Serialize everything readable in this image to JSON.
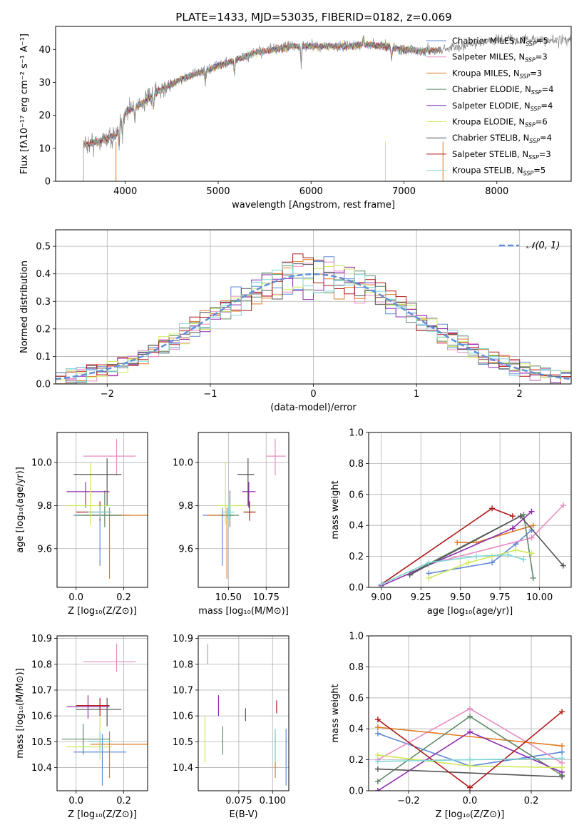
{
  "figure_title": "PLATE=1433, MJD=53035, FIBERID=0182, z=0.069",
  "colors": {
    "Chabrier MILES": "#5f89d8",
    "Salpeter MILES": "#e88cc0",
    "Kroupa MILES": "#e07b24",
    "Chabrier ELODIE": "#5d8a66",
    "Salpeter ELODIE": "#8e2bb0",
    "Kroupa ELODIE": "#cfe85a",
    "Chabrier STELIB": "#555555",
    "Salpeter STELIB": "#b01818",
    "Kroupa STELIB": "#7fd6d6",
    "normal": "#5f8fd8"
  },
  "chart_data": [
    {
      "id": "spectrum",
      "type": "line",
      "title": "PLATE=1433, MJD=53035, FIBERID=0182, z=0.069",
      "xlabel": "wavelength [Angstrom, rest frame]",
      "ylabel": "Flux [fλ10⁻¹⁷ erg cm⁻² s⁻¹ A⁻¹]",
      "xlim": [
        3250,
        8800
      ],
      "ylim": [
        0,
        47
      ],
      "xticks": [
        4000,
        5000,
        6000,
        7000,
        8000
      ],
      "yticks": [
        0,
        10,
        20,
        30,
        40
      ],
      "legend_position": "right",
      "spectrum_envelope": {
        "x": [
          3550,
          3700,
          3900,
          4000,
          4200,
          4400,
          4600,
          4800,
          5000,
          5200,
          5400,
          5600,
          5800,
          6000,
          6200,
          6400,
          6600,
          6800,
          7000,
          7200,
          7400,
          7600,
          7800,
          8000,
          8200,
          8400,
          8600,
          8800
        ],
        "y": [
          11,
          12,
          14,
          21,
          24,
          28,
          31,
          33,
          35,
          37,
          39,
          40,
          41,
          41,
          41,
          41,
          41.5,
          41,
          40,
          39.5,
          40,
          41,
          42,
          43,
          43,
          43,
          42.5,
          43
        ]
      },
      "series": [
        {
          "name": "Chabrier MILES, N_SSP=5",
          "label_main": "Chabrier MILES, N",
          "label_sub": "SSP",
          "label_end": "=5"
        },
        {
          "name": "Salpeter MILES, N_SSP=3",
          "label_main": "Salpeter MILES, N",
          "label_sub": "SSP",
          "label_end": "=3"
        },
        {
          "name": "Kroupa MILES, N_SSP=3",
          "label_main": "Kroupa MILES, N",
          "label_sub": "SSP",
          "label_end": "=3"
        },
        {
          "name": "Chabrier ELODIE, N_SSP=4",
          "label_main": "Chabrier ELODIE, N",
          "label_sub": "SSP",
          "label_end": "=4"
        },
        {
          "name": "Salpeter ELODIE, N_SSP=4",
          "label_main": "Salpeter ELODIE, N",
          "label_sub": "SSP",
          "label_end": "=4"
        },
        {
          "name": "Kroupa ELODIE, N_SSP=6",
          "label_main": "Kroupa ELODIE, N",
          "label_sub": "SSP",
          "label_end": "=6"
        },
        {
          "name": "Chabrier STELIB, N_SSP=4",
          "label_main": "Chabrier STELIB, N",
          "label_sub": "SSP",
          "label_end": "=4"
        },
        {
          "name": "Salpeter STELIB, N_SSP=3",
          "label_main": "Salpeter STELIB, N",
          "label_sub": "SSP",
          "label_end": "=3"
        },
        {
          "name": "Kroupa STELIB, N_SSP=5",
          "label_main": "Kroupa STELIB, N",
          "label_sub": "SSP",
          "label_end": "=5"
        }
      ]
    },
    {
      "id": "residuals",
      "type": "histogram",
      "xlabel": "(data-model)/error",
      "ylabel": "Normed distribution",
      "xlim": [
        -2.5,
        2.5
      ],
      "ylim": [
        0,
        0.56
      ],
      "xticks": [
        -2,
        -1,
        0,
        1,
        2
      ],
      "yticks": [
        0.0,
        0.1,
        0.2,
        0.3,
        0.4,
        0.5
      ],
      "grid": true,
      "legend": "𝒩(0, 1)",
      "legend_position": "top-right",
      "bin_width": 0.1,
      "normal_curve": {
        "mean": 0,
        "sigma": 1
      }
    },
    {
      "id": "age_vs_Z",
      "type": "errorbar",
      "xlabel": "Z [log₁₀(Z/Z⊙)]",
      "ylabel": "age  [log₁₀(age/yr)]",
      "xlim": [
        -0.08,
        0.3
      ],
      "ylim": [
        9.42,
        10.14
      ],
      "xticks": [
        0.0,
        0.2
      ],
      "yticks": [
        9.6,
        9.8,
        10.0
      ],
      "grid": true,
      "points": [
        {
          "x": 0.1,
          "y": 9.755,
          "xlo": -0.01,
          "xhi": 0.23,
          "ylo": 9.52,
          "yhi": 9.79,
          "c": "Chabrier MILES"
        },
        {
          "x": 0.17,
          "y": 10.03,
          "xlo": 0.03,
          "xhi": 0.25,
          "ylo": 9.94,
          "yhi": 10.11,
          "c": "Salpeter MILES"
        },
        {
          "x": 0.14,
          "y": 9.755,
          "xlo": 0.03,
          "xhi": 0.3,
          "ylo": 9.46,
          "yhi": 9.79,
          "c": "Kroupa MILES"
        },
        {
          "x": 0.12,
          "y": 9.755,
          "xlo": 0.0,
          "xhi": 0.19,
          "ylo": 9.7,
          "yhi": 9.87,
          "c": "Chabrier ELODIE"
        },
        {
          "x": 0.04,
          "y": 9.865,
          "xlo": -0.04,
          "xhi": 0.14,
          "ylo": 9.79,
          "yhi": 9.91,
          "c": "Salpeter ELODIE"
        },
        {
          "x": 0.06,
          "y": 9.8,
          "xlo": -0.04,
          "xhi": 0.15,
          "ylo": 9.71,
          "yhi": 10.0,
          "c": "Kroupa ELODIE"
        },
        {
          "x": 0.13,
          "y": 9.945,
          "xlo": -0.01,
          "xhi": 0.19,
          "ylo": 9.8,
          "yhi": 10.02,
          "c": "Chabrier STELIB"
        },
        {
          "x": 0.1,
          "y": 9.77,
          "xlo": 0.0,
          "xhi": 0.14,
          "ylo": 9.73,
          "yhi": 9.82,
          "c": "Salpeter STELIB"
        },
        {
          "x": 0.1,
          "y": 9.77,
          "xlo": 0.05,
          "xhi": 0.15,
          "ylo": 9.74,
          "yhi": 9.8,
          "c": "Kroupa STELIB"
        }
      ]
    },
    {
      "id": "age_vs_mass",
      "type": "errorbar",
      "xlabel": "mass [log₁₀(M/M⊙)]",
      "ylabel": "",
      "xlim": [
        10.3,
        10.9
      ],
      "ylim": [
        9.42,
        10.14
      ],
      "xticks": [
        10.5,
        10.75
      ],
      "yticks": [
        9.6,
        9.8,
        10.0
      ],
      "grid": true,
      "points": [
        {
          "x": 10.46,
          "y": 9.755,
          "xlo": 10.33,
          "xhi": 10.53,
          "ylo": 9.52,
          "yhi": 9.79,
          "c": "Chabrier MILES"
        },
        {
          "x": 10.81,
          "y": 10.03,
          "xlo": 10.75,
          "xhi": 10.88,
          "ylo": 9.94,
          "yhi": 10.11,
          "c": "Salpeter MILES"
        },
        {
          "x": 10.49,
          "y": 9.755,
          "xlo": 10.36,
          "xhi": 10.54,
          "ylo": 9.46,
          "yhi": 9.79,
          "c": "Kroupa MILES"
        },
        {
          "x": 10.51,
          "y": 9.755,
          "xlo": 10.45,
          "xhi": 10.57,
          "ylo": 9.7,
          "yhi": 9.87,
          "c": "Chabrier ELODIE"
        },
        {
          "x": 10.635,
          "y": 9.865,
          "xlo": 10.59,
          "xhi": 10.68,
          "ylo": 9.79,
          "yhi": 9.91,
          "c": "Salpeter ELODIE"
        },
        {
          "x": 10.48,
          "y": 9.8,
          "xlo": 10.43,
          "xhi": 10.6,
          "ylo": 9.71,
          "yhi": 10.0,
          "c": "Kroupa ELODIE"
        },
        {
          "x": 10.63,
          "y": 9.945,
          "xlo": 10.56,
          "xhi": 10.67,
          "ylo": 9.8,
          "yhi": 10.02,
          "c": "Chabrier STELIB"
        },
        {
          "x": 10.64,
          "y": 9.77,
          "xlo": 10.6,
          "xhi": 10.68,
          "ylo": 9.73,
          "yhi": 9.82,
          "c": "Salpeter STELIB"
        },
        {
          "x": 10.5,
          "y": 9.77,
          "xlo": 10.46,
          "xhi": 10.54,
          "ylo": 9.74,
          "yhi": 9.8,
          "c": "Kroupa STELIB"
        }
      ]
    },
    {
      "id": "weight_vs_age",
      "type": "line",
      "xlabel": "age  [log₁₀(age/yr)]",
      "ylabel": "mass weight",
      "xlim": [
        8.92,
        10.2
      ],
      "ylim": [
        0,
        1.0
      ],
      "xticks": [
        9.0,
        9.25,
        9.5,
        9.75,
        10.0
      ],
      "yticks": [
        0.0,
        0.2,
        0.4,
        0.6,
        0.8,
        1.0
      ],
      "grid": true,
      "series": [
        {
          "c": "Chabrier MILES",
          "x": [
            9.3,
            9.7,
            9.85,
            9.95
          ],
          "y": [
            0.09,
            0.16,
            0.28,
            0.37
          ]
        },
        {
          "c": "Salpeter MILES",
          "x": [
            9.3,
            9.95,
            10.15
          ],
          "y": [
            0.15,
            0.32,
            0.53
          ]
        },
        {
          "c": "Kroupa MILES",
          "x": [
            9.48,
            9.6,
            9.96
          ],
          "y": [
            0.29,
            0.29,
            0.4
          ]
        },
        {
          "c": "Chabrier ELODIE",
          "x": [
            9.2,
            9.9,
            9.96
          ],
          "y": [
            0.1,
            0.47,
            0.06
          ]
        },
        {
          "c": "Salpeter ELODIE",
          "x": [
            9.0,
            9.83,
            9.95
          ],
          "y": [
            0.01,
            0.38,
            0.49
          ]
        },
        {
          "c": "Kroupa ELODIE",
          "x": [
            9.3,
            9.55,
            9.7,
            9.85,
            9.95
          ],
          "y": [
            0.06,
            0.16,
            0.2,
            0.24,
            0.22
          ]
        },
        {
          "c": "Chabrier STELIB",
          "x": [
            9.18,
            9.88,
            10.15
          ],
          "y": [
            0.08,
            0.46,
            0.14
          ]
        },
        {
          "c": "Salpeter STELIB",
          "x": [
            9.0,
            9.7,
            9.83
          ],
          "y": [
            0.02,
            0.51,
            0.46
          ]
        },
        {
          "c": "Kroupa STELIB",
          "x": [
            9.0,
            9.3,
            9.6,
            9.8,
            9.9
          ],
          "y": [
            0.02,
            0.16,
            0.2,
            0.21,
            0.18
          ]
        }
      ]
    },
    {
      "id": "mass_vs_Z",
      "type": "errorbar",
      "xlabel": "Z [log₁₀(Z/Z⊙)]",
      "ylabel": "mass [log₁₀(M/M⊙)]",
      "xlim": [
        -0.08,
        0.3
      ],
      "ylim": [
        10.31,
        10.91
      ],
      "xticks": [
        0.0,
        0.2
      ],
      "yticks": [
        10.4,
        10.5,
        10.6,
        10.7,
        10.8,
        10.9
      ],
      "grid": true,
      "points": [
        {
          "x": 0.11,
          "y": 10.46,
          "xlo": -0.01,
          "xhi": 0.21,
          "ylo": 10.33,
          "yhi": 10.53,
          "c": "Chabrier MILES"
        },
        {
          "x": 0.17,
          "y": 10.81,
          "xlo": 0.03,
          "xhi": 0.25,
          "ylo": 10.77,
          "yhi": 10.88,
          "c": "Salpeter MILES"
        },
        {
          "x": 0.14,
          "y": 10.49,
          "xlo": 0.06,
          "xhi": 0.3,
          "ylo": 10.36,
          "yhi": 10.54,
          "c": "Kroupa MILES"
        },
        {
          "x": 0.03,
          "y": 10.51,
          "xlo": -0.06,
          "xhi": 0.14,
          "ylo": 10.45,
          "yhi": 10.57,
          "c": "Chabrier ELODIE"
        },
        {
          "x": 0.05,
          "y": 10.635,
          "xlo": -0.04,
          "xhi": 0.14,
          "ylo": 10.59,
          "yhi": 10.68,
          "c": "Salpeter ELODIE"
        },
        {
          "x": 0.1,
          "y": 10.48,
          "xlo": -0.04,
          "xhi": 0.15,
          "ylo": 10.43,
          "yhi": 10.6,
          "c": "Kroupa ELODIE"
        },
        {
          "x": 0.13,
          "y": 10.625,
          "xlo": 0.0,
          "xhi": 0.19,
          "ylo": 10.56,
          "yhi": 10.67,
          "c": "Chabrier STELIB"
        },
        {
          "x": 0.1,
          "y": 10.64,
          "xlo": 0.0,
          "xhi": 0.14,
          "ylo": 10.6,
          "yhi": 10.67,
          "c": "Salpeter STELIB"
        },
        {
          "x": 0.1,
          "y": 10.5,
          "xlo": 0.05,
          "xhi": 0.15,
          "ylo": 10.46,
          "yhi": 10.54,
          "c": "Kroupa STELIB"
        }
      ]
    },
    {
      "id": "mass_vs_ebv",
      "type": "errorbar",
      "xlabel": "E(B-V)",
      "ylabel": "",
      "xlim": [
        0.045,
        0.112
      ],
      "ylim": [
        10.31,
        10.91
      ],
      "xticks": [
        0.075,
        0.1
      ],
      "yticks": [
        10.4,
        10.5,
        10.6,
        10.7,
        10.8,
        10.9
      ],
      "grid": true,
      "points": [
        {
          "x": 0.11,
          "y": 10.46,
          "ylo": 10.33,
          "yhi": 10.55,
          "c": "Chabrier MILES"
        },
        {
          "x": 0.052,
          "y": 10.84,
          "ylo": 10.8,
          "yhi": 10.88,
          "c": "Salpeter MILES"
        },
        {
          "x": 0.102,
          "y": 10.45,
          "ylo": 10.36,
          "yhi": 10.54,
          "c": "Kroupa MILES"
        },
        {
          "x": 0.063,
          "y": 10.51,
          "ylo": 10.45,
          "yhi": 10.56,
          "c": "Chabrier ELODIE"
        },
        {
          "x": 0.06,
          "y": 10.64,
          "ylo": 10.6,
          "yhi": 10.68,
          "c": "Salpeter ELODIE"
        },
        {
          "x": 0.05,
          "y": 10.51,
          "ylo": 10.42,
          "yhi": 10.6,
          "c": "Kroupa ELODIE"
        },
        {
          "x": 0.08,
          "y": 10.61,
          "ylo": 10.58,
          "yhi": 10.63,
          "c": "Chabrier STELIB"
        },
        {
          "x": 0.103,
          "y": 10.64,
          "ylo": 10.61,
          "yhi": 10.66,
          "c": "Salpeter STELIB"
        },
        {
          "x": 0.102,
          "y": 10.48,
          "ylo": 10.42,
          "yhi": 10.55,
          "c": "Kroupa STELIB"
        }
      ]
    },
    {
      "id": "weight_vs_Z",
      "type": "line",
      "xlabel": "Z [log₁₀(Z/Z⊙)]",
      "ylabel": "mass weight",
      "xlim": [
        -0.33,
        0.33
      ],
      "ylim": [
        0,
        1.0
      ],
      "xticks": [
        -0.2,
        0.0,
        0.2
      ],
      "yticks": [
        0.0,
        0.2,
        0.4,
        0.6,
        0.8,
        1.0
      ],
      "grid": true,
      "series": [
        {
          "c": "Chabrier MILES",
          "x": [
            -0.3,
            0.0,
            0.3
          ],
          "y": [
            0.37,
            0.16,
            0.25
          ]
        },
        {
          "c": "Salpeter MILES",
          "x": [
            -0.3,
            0.0,
            0.3
          ],
          "y": [
            0.2,
            0.53,
            0.18
          ]
        },
        {
          "c": "Kroupa MILES",
          "x": [
            -0.3,
            0.3
          ],
          "y": [
            0.41,
            0.29
          ]
        },
        {
          "c": "Chabrier ELODIE",
          "x": [
            -0.3,
            0.0,
            0.3
          ],
          "y": [
            0.06,
            0.48,
            0.1
          ]
        },
        {
          "c": "Salpeter ELODIE",
          "x": [
            -0.3,
            0.0,
            0.3
          ],
          "y": [
            0.0,
            0.38,
            0.12
          ]
        },
        {
          "c": "Kroupa ELODIE",
          "x": [
            -0.3,
            0.0,
            0.3
          ],
          "y": [
            0.23,
            0.16,
            0.15
          ]
        },
        {
          "c": "Chabrier STELIB",
          "x": [
            -0.3,
            0.3
          ],
          "y": [
            0.14,
            0.09
          ]
        },
        {
          "c": "Salpeter STELIB",
          "x": [
            -0.3,
            0.0,
            0.3
          ],
          "y": [
            0.46,
            0.02,
            0.51
          ]
        },
        {
          "c": "Kroupa STELIB",
          "x": [
            -0.3,
            0.0,
            0.3
          ],
          "y": [
            0.19,
            0.2,
            0.21
          ]
        }
      ]
    }
  ]
}
